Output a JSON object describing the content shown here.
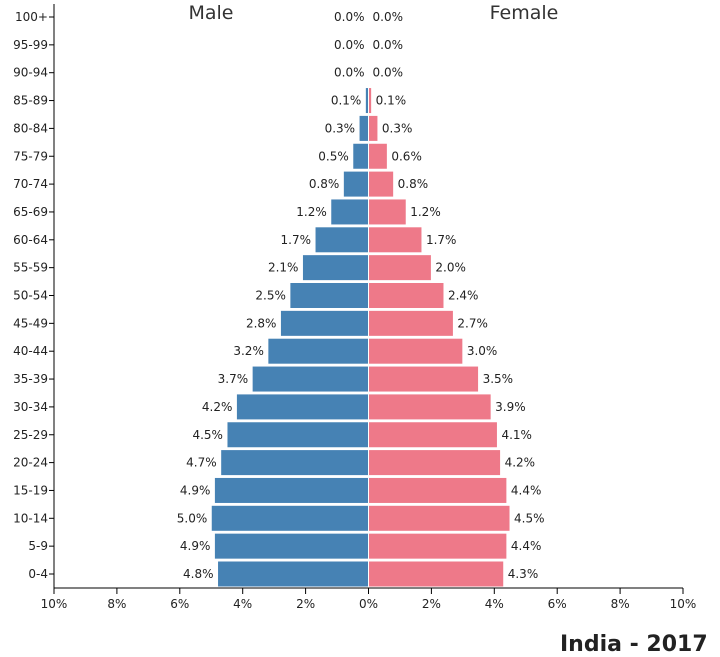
{
  "chart_data": {
    "type": "bar",
    "orientation": "horizontal-population-pyramid",
    "categories": [
      "100+",
      "95-99",
      "90-94",
      "85-89",
      "80-84",
      "75-79",
      "70-74",
      "65-69",
      "60-64",
      "55-59",
      "50-54",
      "45-49",
      "40-44",
      "35-39",
      "30-34",
      "25-29",
      "20-24",
      "15-19",
      "10-14",
      "5-9",
      "0-4"
    ],
    "series": [
      {
        "name": "Male",
        "color": "#4682b4",
        "values": [
          0.0,
          0.0,
          0.0,
          0.1,
          0.3,
          0.5,
          0.8,
          1.2,
          1.7,
          2.1,
          2.5,
          2.8,
          3.2,
          3.7,
          4.2,
          4.5,
          4.7,
          4.9,
          5.0,
          4.9,
          4.8
        ],
        "labels": [
          "0.0%",
          "0.0%",
          "0.0%",
          "0.1%",
          "0.3%",
          "0.5%",
          "0.8%",
          "1.2%",
          "1.7%",
          "2.1%",
          "2.5%",
          "2.8%",
          "3.2%",
          "3.7%",
          "4.2%",
          "4.5%",
          "4.7%",
          "4.9%",
          "5.0%",
          "4.9%",
          "4.8%"
        ]
      },
      {
        "name": "Female",
        "color": "#ee7989",
        "values": [
          0.0,
          0.0,
          0.0,
          0.1,
          0.3,
          0.6,
          0.8,
          1.2,
          1.7,
          2.0,
          2.4,
          2.7,
          3.0,
          3.5,
          3.9,
          4.1,
          4.2,
          4.4,
          4.5,
          4.4,
          4.3
        ],
        "labels": [
          "0.0%",
          "0.0%",
          "0.0%",
          "0.1%",
          "0.3%",
          "0.6%",
          "0.8%",
          "1.2%",
          "1.7%",
          "2.0%",
          "2.4%",
          "2.7%",
          "3.0%",
          "3.5%",
          "3.9%",
          "4.1%",
          "4.2%",
          "4.4%",
          "4.5%",
          "4.4%",
          "4.3%"
        ]
      }
    ],
    "xlim": [
      -10,
      10
    ],
    "xticks": [
      -10,
      -8,
      -6,
      -4,
      -2,
      0,
      2,
      4,
      6,
      8,
      10
    ],
    "xtick_labels": [
      "10%",
      "8%",
      "6%",
      "4%",
      "2%",
      "0%",
      "2%",
      "4%",
      "6%",
      "8%",
      "10%"
    ],
    "grid": false,
    "title": "India - 2017"
  }
}
